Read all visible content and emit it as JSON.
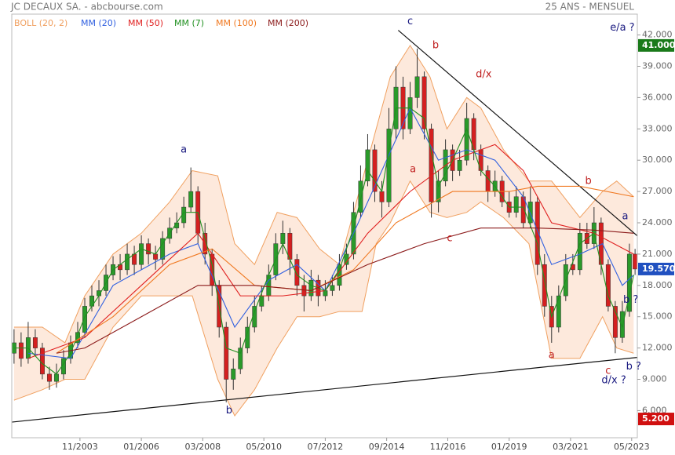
{
  "chart_data": {
    "type": "candlestick",
    "title": "JC DECAUX SA. - abcbourse.com",
    "subtitle": "25 ANS - MENSUEL",
    "xlim": [
      2001.42,
      2023.53
    ],
    "ylim": [
      3.4,
      44
    ],
    "xticks": [
      {
        "value": 2003.83,
        "label": "11/2003"
      },
      {
        "value": 2006.0,
        "label": "01/2006"
      },
      {
        "value": 2008.17,
        "label": "03/2008"
      },
      {
        "value": 2010.33,
        "label": "05/2010"
      },
      {
        "value": 2012.5,
        "label": "07/2012"
      },
      {
        "value": 2014.67,
        "label": "09/2014"
      },
      {
        "value": 2016.83,
        "label": "11/2016"
      },
      {
        "value": 2019.0,
        "label": "01/2019"
      },
      {
        "value": 2021.17,
        "label": "03/2021"
      },
      {
        "value": 2023.33,
        "label": "05/2023"
      }
    ],
    "yticks": [
      {
        "value": 6,
        "label": "6.000"
      },
      {
        "value": 9,
        "label": "9.000"
      },
      {
        "value": 12,
        "label": "12.000"
      },
      {
        "value": 15,
        "label": "15.000"
      },
      {
        "value": 18,
        "label": "18.000"
      },
      {
        "value": 21,
        "label": "21.000"
      },
      {
        "value": 24,
        "label": "24.000"
      },
      {
        "value": 27,
        "label": "27.000"
      },
      {
        "value": 30,
        "label": "30.000"
      },
      {
        "value": 33,
        "label": "33.000"
      },
      {
        "value": 36,
        "label": "36.000"
      },
      {
        "value": 39,
        "label": "39.000"
      },
      {
        "value": 42,
        "label": "42.000"
      }
    ],
    "up_color": "#2a9a2a",
    "down_color": "#d42020",
    "candles": {
      "x": [
        2001.5,
        2001.75,
        2002.0,
        2002.25,
        2002.5,
        2002.75,
        2003.0,
        2003.25,
        2003.5,
        2003.75,
        2004.0,
        2004.25,
        2004.5,
        2004.75,
        2005.0,
        2005.25,
        2005.5,
        2005.75,
        2006.0,
        2006.25,
        2006.5,
        2006.75,
        2007.0,
        2007.25,
        2007.5,
        2007.75,
        2008.0,
        2008.25,
        2008.5,
        2008.75,
        2009.0,
        2009.25,
        2009.5,
        2009.75,
        2010.0,
        2010.25,
        2010.5,
        2010.75,
        2011.0,
        2011.25,
        2011.5,
        2011.75,
        2012.0,
        2012.25,
        2012.5,
        2012.75,
        2013.0,
        2013.25,
        2013.5,
        2013.75,
        2014.0,
        2014.25,
        2014.5,
        2014.75,
        2015.0,
        2015.25,
        2015.5,
        2015.75,
        2016.0,
        2016.25,
        2016.5,
        2016.75,
        2017.0,
        2017.25,
        2017.5,
        2017.75,
        2018.0,
        2018.25,
        2018.5,
        2018.75,
        2019.0,
        2019.25,
        2019.5,
        2019.75,
        2020.0,
        2020.25,
        2020.5,
        2020.75,
        2021.0,
        2021.25,
        2021.5,
        2021.75,
        2022.0,
        2022.25,
        2022.5,
        2022.75,
        2023.0,
        2023.25,
        2023.45
      ],
      "open": [
        11.5,
        12.5,
        11,
        13,
        12,
        9.5,
        8.8,
        9.5,
        11,
        12.5,
        13.5,
        16,
        17,
        17.5,
        19,
        20,
        19.5,
        21,
        20,
        22,
        21,
        20.5,
        22.5,
        23.5,
        24,
        25.5,
        27,
        23,
        21,
        18,
        14,
        9,
        10,
        12,
        14,
        16,
        17,
        19,
        22,
        23,
        20.5,
        18,
        17,
        18.5,
        17,
        17.5,
        18,
        20,
        21,
        25,
        28,
        31,
        27,
        26,
        33,
        37,
        33,
        36,
        38,
        33,
        26,
        28,
        31,
        29,
        30,
        34,
        31,
        29,
        27,
        28,
        26,
        25,
        26.5,
        24,
        26,
        20,
        16,
        14,
        17,
        20,
        19.5,
        23,
        22,
        24,
        20,
        16,
        13,
        15.5,
        21
      ],
      "high": [
        13.8,
        13.5,
        14.5,
        13.8,
        12.5,
        10.2,
        10.5,
        11.8,
        13.2,
        14.5,
        16.8,
        18,
        18.5,
        20,
        20.8,
        21,
        22,
        21.8,
        22.8,
        22.5,
        21.8,
        23.2,
        24.5,
        25,
        26.5,
        29.3,
        27.5,
        24,
        21.5,
        18.5,
        14.5,
        11,
        13,
        15,
        17,
        18,
        20,
        23,
        24.2,
        23.5,
        21,
        19,
        19.5,
        19,
        18.5,
        19,
        21,
        22,
        26,
        29.5,
        32.5,
        31.5,
        28,
        35,
        39,
        38,
        37.5,
        40.7,
        38.5,
        33.5,
        29,
        32,
        31.5,
        31,
        35.5,
        34.5,
        31.5,
        29.5,
        29,
        28.5,
        27,
        27.5,
        27,
        27.5,
        26.5,
        21,
        17,
        18,
        21,
        21,
        24,
        24,
        25.5,
        24.5,
        20.5,
        16.5,
        16.5,
        22,
        21.5
      ],
      "low": [
        10.5,
        10.2,
        10.5,
        11.2,
        9,
        8,
        8.2,
        9,
        10.5,
        12,
        13,
        15.5,
        16,
        17,
        18.5,
        18.5,
        19,
        19,
        19.5,
        20,
        19.5,
        20,
        22,
        23,
        23.5,
        25,
        22,
        20,
        17,
        13,
        6.8,
        8,
        9.5,
        11.5,
        13.5,
        15.5,
        16.5,
        18.5,
        21,
        19,
        17,
        15.5,
        16.5,
        16,
        16.5,
        17,
        17.5,
        19.5,
        20.5,
        24.5,
        27.5,
        26,
        24.5,
        25.5,
        32,
        32,
        32.5,
        35,
        32,
        24.5,
        25,
        27.5,
        28,
        28.5,
        29.5,
        30,
        28.5,
        26,
        26.5,
        25.5,
        24.5,
        24.5,
        23.5,
        23.5,
        19,
        15,
        12.5,
        13.5,
        16.5,
        19,
        19,
        21.5,
        21.5,
        19,
        15.5,
        11.5,
        12.5,
        15,
        19
      ],
      "close": [
        12.5,
        11,
        13,
        12,
        9.5,
        8.8,
        9.5,
        11,
        12.5,
        13.5,
        16,
        17,
        17.5,
        19,
        20,
        19.5,
        21,
        20,
        22,
        21,
        20.5,
        22.5,
        23.5,
        24,
        25.5,
        27,
        23,
        21,
        18,
        14,
        9,
        10,
        12,
        14,
        16,
        17,
        19,
        22,
        23,
        20.5,
        18,
        17,
        18.5,
        17,
        17.5,
        18,
        20,
        21,
        25,
        28,
        31,
        27,
        26,
        33,
        37,
        33,
        36,
        38,
        33,
        26,
        28,
        31,
        29,
        30,
        34,
        31,
        29,
        27,
        28,
        26,
        25,
        26.5,
        24,
        26,
        20,
        16,
        14,
        17,
        20,
        19.5,
        23,
        22,
        24,
        20,
        16,
        13,
        15.5,
        21,
        19.57
      ]
    },
    "bollinger": {
      "name": "BOLL (20, 2)",
      "color": "#f0a060",
      "fill": "#fde3d3",
      "x": [
        2001.5,
        2002.5,
        2003.3,
        2004,
        2005,
        2006,
        2007,
        2007.8,
        2008.7,
        2009.3,
        2010,
        2010.8,
        2011.5,
        2012.3,
        2013,
        2013.8,
        2014.3,
        2014.8,
        2015.5,
        2016.2,
        2016.8,
        2017.5,
        2018,
        2018.8,
        2019.7,
        2020.5,
        2021.5,
        2022.3,
        2022.8,
        2023.4
      ],
      "upper": [
        14,
        14,
        12.5,
        17,
        21,
        23,
        26,
        29,
        28.5,
        22,
        20,
        25,
        24.5,
        21.5,
        20,
        28,
        33,
        38,
        41,
        38,
        33,
        36,
        35,
        31,
        28,
        28,
        24.5,
        27,
        28,
        26.5
      ],
      "lower": [
        7,
        8,
        9,
        9,
        14,
        17,
        17,
        17,
        9,
        5.5,
        8,
        12,
        15,
        15,
        15.5,
        15.5,
        22,
        24,
        28,
        25,
        24.5,
        25,
        26,
        24.5,
        22,
        11,
        11,
        15,
        12,
        11.5
      ]
    },
    "series": [
      {
        "name": "MM (20)",
        "color": "#3060e0",
        "x": [
          2002,
          2003.5,
          2005,
          2007,
          2008,
          2009.3,
          2010.5,
          2011.5,
          2012.5,
          2013.5,
          2014.5,
          2015.5,
          2016.5,
          2017.5,
          2018.5,
          2019.5,
          2020.5,
          2021.5,
          2022.3,
          2023.0,
          2023.4
        ],
        "values": [
          11.5,
          11,
          18,
          21,
          22,
          14,
          18.5,
          20,
          17.5,
          23,
          29,
          35,
          30,
          31,
          30,
          26.5,
          20,
          21,
          22,
          18,
          19
        ]
      },
      {
        "name": "MM (50)",
        "color": "#e02020",
        "x": [
          2002,
          2004,
          2006,
          2008,
          2009.5,
          2011,
          2012.5,
          2014,
          2015.5,
          2017,
          2018.5,
          2019.5,
          2020.5,
          2022,
          2023.4
        ],
        "values": [
          11,
          13,
          18,
          23,
          17,
          17,
          17.5,
          23,
          27,
          30,
          31.5,
          29,
          24,
          23,
          21
        ]
      },
      {
        "name": "MM (7)",
        "color": "#209020",
        "x": [
          2001.5,
          2002,
          2002.5,
          2003,
          2003.5,
          2004,
          2004.5,
          2005,
          2005.5,
          2006,
          2006.5,
          2007,
          2007.5,
          2008,
          2008.5,
          2009,
          2009.5,
          2010,
          2010.5,
          2011,
          2011.5,
          2012,
          2012.5,
          2013,
          2013.5,
          2014,
          2014.5,
          2015,
          2015.5,
          2016,
          2016.5,
          2017,
          2017.5,
          2018,
          2018.5,
          2019,
          2019.5,
          2020,
          2020.5,
          2021,
          2021.5,
          2022,
          2022.5,
          2023,
          2023.4
        ],
        "values": [
          12,
          12,
          10.5,
          9.5,
          11.5,
          15,
          17,
          19.5,
          20.5,
          21.5,
          21,
          23,
          25,
          25,
          20,
          12,
          11.5,
          15.5,
          19,
          22,
          19,
          18,
          17.5,
          19.5,
          23.5,
          29,
          27,
          35,
          35,
          34,
          27.5,
          30,
          33,
          29,
          27.5,
          25.5,
          25.5,
          22,
          15,
          18.5,
          22,
          23,
          17,
          14,
          19
        ]
      },
      {
        "name": "MM (100)",
        "color": "#f07820",
        "x": [
          2003,
          2005,
          2007,
          2008.5,
          2010,
          2012,
          2013.5,
          2015,
          2017,
          2019,
          2020,
          2021.5,
          2023.4
        ],
        "values": [
          11.5,
          15,
          20,
          21.5,
          18,
          17.5,
          19.5,
          24,
          27,
          27,
          27.5,
          27.5,
          26.5
        ]
      },
      {
        "name": "MM (200)",
        "color": "#8b1a1a",
        "x": [
          2003,
          2004,
          2006,
          2008,
          2010,
          2012,
          2014,
          2016,
          2018,
          2020,
          2022,
          2023.4
        ],
        "values": [
          11.5,
          12,
          15,
          18,
          18,
          17.5,
          20,
          22,
          23.5,
          23.5,
          23.3,
          23
        ]
      }
    ],
    "trendlines": [
      {
        "x": [
          2015.08,
          2023.53
        ],
        "values": [
          42.45,
          22.75
        ]
      },
      {
        "x": [
          2001.42,
          2023.53
        ],
        "values": [
          4.9,
          11.1
        ]
      }
    ],
    "annotations": [
      {
        "text": "c",
        "x": 2015.5,
        "y": 43.3,
        "color": "#1a1a80"
      },
      {
        "text": "b",
        "x": 2016.4,
        "y": 41.0,
        "color": "#c02020"
      },
      {
        "text": "d/x",
        "x": 2018.1,
        "y": 38.2,
        "color": "#c02020"
      },
      {
        "text": "a",
        "x": 2007.5,
        "y": 31.0,
        "color": "#1a1a80"
      },
      {
        "text": "a",
        "x": 2015.6,
        "y": 29.1,
        "color": "#c02020"
      },
      {
        "text": "c",
        "x": 2016.9,
        "y": 22.5,
        "color": "#c02020"
      },
      {
        "text": "b",
        "x": 2021.8,
        "y": 28.0,
        "color": "#c02020"
      },
      {
        "text": "a",
        "x": 2023.1,
        "y": 24.6,
        "color": "#1a1a80"
      },
      {
        "text": "e/a ?",
        "x": 2023.0,
        "y": 42.7,
        "color": "#1a1a80"
      },
      {
        "text": "b ?",
        "x": 2023.3,
        "y": 16.6,
        "color": "#1a1a80"
      },
      {
        "text": "a",
        "x": 2020.5,
        "y": 11.3,
        "color": "#c02020"
      },
      {
        "text": "c",
        "x": 2022.5,
        "y": 9.8,
        "color": "#c02020"
      },
      {
        "text": "b ?",
        "x": 2023.4,
        "y": 10.2,
        "color": "#1a1a80"
      },
      {
        "text": "d/x ?",
        "x": 2022.7,
        "y": 8.9,
        "color": "#1a1a80"
      },
      {
        "text": "b",
        "x": 2009.1,
        "y": 6.0,
        "color": "#1a1a80"
      }
    ],
    "price_tags": [
      {
        "value": 41,
        "label": "41.000",
        "color": "#1a7a1a"
      },
      {
        "value": 19.57,
        "label": "19.570",
        "color": "#2050c0"
      },
      {
        "value": 5.2,
        "label": "5.200",
        "color": "#d01010"
      }
    ]
  }
}
